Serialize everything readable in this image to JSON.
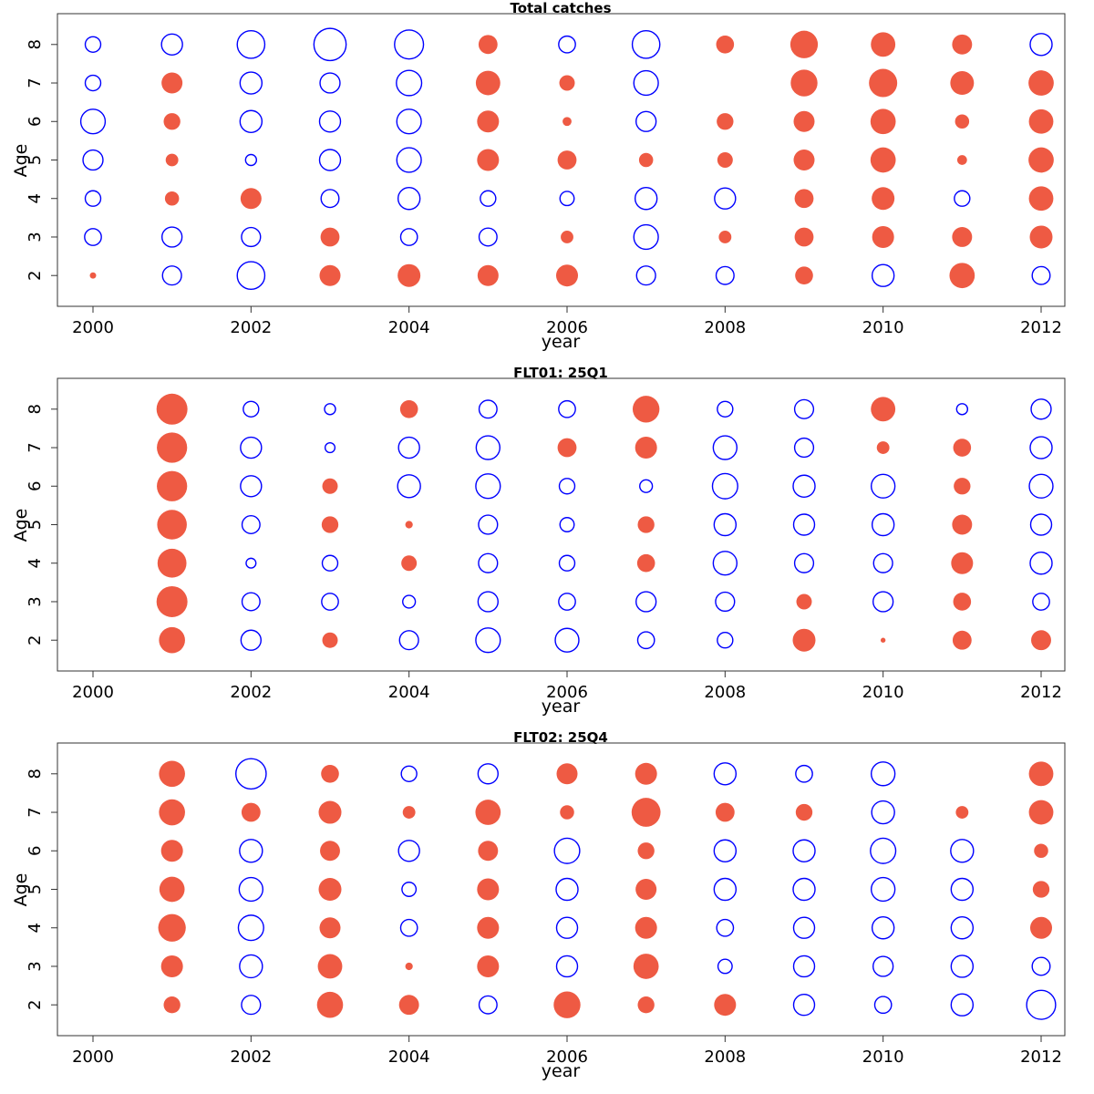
{
  "colors": {
    "positive": "#ee5a43",
    "negative": "#0000ff"
  },
  "chart_data": [
    {
      "type": "scatter",
      "title": "Total catches",
      "xlabel": "year",
      "ylabel": "Age",
      "years": [
        2000,
        2001,
        2002,
        2003,
        2004,
        2005,
        2006,
        2007,
        2008,
        2009,
        2010,
        2011,
        2012
      ],
      "ages": [
        2,
        3,
        4,
        5,
        6,
        7,
        8
      ],
      "xticks": [
        2000,
        2002,
        2004,
        2006,
        2008,
        2010,
        2012
      ],
      "ylim": [
        1.2,
        8.8
      ],
      "xlim": [
        1999.55,
        2012.3
      ],
      "residuals": {
        "8": [
          -0.3,
          -0.55,
          -0.95,
          -1.3,
          -1.05,
          0.45,
          -0.35,
          -0.95,
          0.4,
          0.95,
          0.75,
          0.5,
          -0.6
        ],
        "7": [
          -0.3,
          0.55,
          -0.6,
          -0.5,
          -0.8,
          0.75,
          0.3,
          -0.75,
          0,
          0.9,
          1.0,
          0.7,
          0.8
        ],
        "6": [
          -0.75,
          0.35,
          -0.6,
          -0.55,
          -0.75,
          0.6,
          0.1,
          -0.5,
          0.35,
          0.55,
          0.8,
          0.25,
          0.75
        ],
        "5": [
          -0.5,
          0.2,
          -0.15,
          -0.55,
          -0.75,
          0.6,
          0.45,
          0.25,
          0.3,
          0.55,
          0.8,
          0.12,
          0.8
        ],
        "4": [
          -0.3,
          0.25,
          0.55,
          -0.4,
          -0.6,
          -0.3,
          -0.25,
          -0.6,
          -0.55,
          0.45,
          0.65,
          -0.3,
          0.75
        ],
        "3": [
          -0.35,
          -0.5,
          -0.45,
          0.45,
          -0.35,
          -0.4,
          0.2,
          -0.75,
          0.2,
          0.45,
          0.6,
          0.5,
          0.65
        ],
        "2": [
          0.05,
          -0.45,
          -0.95,
          0.55,
          0.65,
          0.55,
          0.6,
          -0.45,
          -0.4,
          0.4,
          -0.6,
          0.8,
          -0.4
        ]
      }
    },
    {
      "type": "scatter",
      "title": "FLT01: 25Q1",
      "xlabel": "year",
      "ylabel": "Age",
      "years": [
        2000,
        2001,
        2002,
        2003,
        2004,
        2005,
        2006,
        2007,
        2008,
        2009,
        2010,
        2011,
        2012
      ],
      "ages": [
        2,
        3,
        4,
        5,
        6,
        7,
        8
      ],
      "xticks": [
        2000,
        2002,
        2004,
        2006,
        2008,
        2010,
        2012
      ],
      "ylim": [
        1.2,
        8.8
      ],
      "xlim": [
        1999.55,
        2012.3
      ],
      "residuals": {
        "8": [
          null,
          1.2,
          -0.3,
          -0.15,
          0.4,
          -0.4,
          -0.35,
          0.9,
          -0.3,
          -0.45,
          0.75,
          -0.15,
          -0.5
        ],
        "7": [
          null,
          1.15,
          -0.55,
          -0.12,
          -0.55,
          -0.7,
          0.45,
          0.6,
          -0.7,
          -0.45,
          0.2,
          0.4,
          -0.6
        ],
        "6": [
          null,
          1.15,
          -0.55,
          0.3,
          -0.65,
          -0.75,
          -0.3,
          -0.2,
          -0.8,
          -0.6,
          -0.7,
          0.35,
          -0.7
        ],
        "5": [
          null,
          1.1,
          -0.4,
          0.35,
          0.07,
          -0.45,
          -0.25,
          0.35,
          -0.6,
          -0.55,
          -0.6,
          0.5,
          -0.55
        ],
        "4": [
          null,
          1.05,
          -0.12,
          -0.3,
          0.3,
          -0.45,
          -0.3,
          0.4,
          -0.7,
          -0.45,
          -0.45,
          0.6,
          -0.6
        ],
        "3": [
          null,
          1.2,
          -0.4,
          -0.35,
          -0.2,
          -0.5,
          -0.35,
          -0.5,
          -0.45,
          0.3,
          -0.5,
          0.4,
          -0.35
        ],
        "2": [
          null,
          0.85,
          -0.5,
          0.3,
          -0.45,
          -0.75,
          -0.7,
          -0.35,
          -0.3,
          0.65,
          0.03,
          0.45,
          0.5
        ]
      }
    },
    {
      "type": "scatter",
      "title": "FLT02: 25Q4",
      "xlabel": "year",
      "ylabel": "Age",
      "years": [
        2000,
        2001,
        2002,
        2003,
        2004,
        2005,
        2006,
        2007,
        2008,
        2009,
        2010,
        2011,
        2012
      ],
      "ages": [
        2,
        3,
        4,
        5,
        6,
        7,
        8
      ],
      "xticks": [
        2000,
        2002,
        2004,
        2006,
        2008,
        2010,
        2012
      ],
      "ylim": [
        1.2,
        8.8
      ],
      "xlim": [
        1999.55,
        2012.3
      ],
      "residuals": {
        "8": [
          null,
          0.85,
          -1.15,
          0.4,
          -0.3,
          -0.5,
          0.55,
          0.6,
          -0.6,
          -0.35,
          -0.7,
          null,
          0.75
        ],
        "7": [
          null,
          0.85,
          0.45,
          0.65,
          0.2,
          0.8,
          0.25,
          1.05,
          0.45,
          0.35,
          -0.65,
          0.2,
          0.75
        ],
        "6": [
          null,
          0.6,
          -0.65,
          0.5,
          -0.55,
          0.5,
          -0.8,
          0.35,
          -0.6,
          -0.6,
          -0.8,
          -0.65,
          0.25
        ],
        "5": [
          null,
          0.8,
          -0.7,
          0.65,
          -0.25,
          0.6,
          -0.6,
          0.55,
          -0.6,
          -0.6,
          -0.7,
          -0.6,
          0.35
        ],
        "4": [
          null,
          0.95,
          -0.8,
          0.55,
          -0.35,
          0.6,
          -0.55,
          0.6,
          -0.35,
          -0.55,
          -0.6,
          -0.6,
          0.6
        ],
        "3": [
          null,
          0.6,
          -0.65,
          0.75,
          0.07,
          0.6,
          -0.55,
          0.8,
          -0.25,
          -0.55,
          -0.5,
          -0.6,
          -0.4
        ],
        "2": [
          null,
          0.35,
          -0.45,
          0.85,
          0.5,
          -0.4,
          0.9,
          0.35,
          0.6,
          -0.55,
          -0.35,
          -0.6,
          -1.05
        ]
      }
    }
  ]
}
